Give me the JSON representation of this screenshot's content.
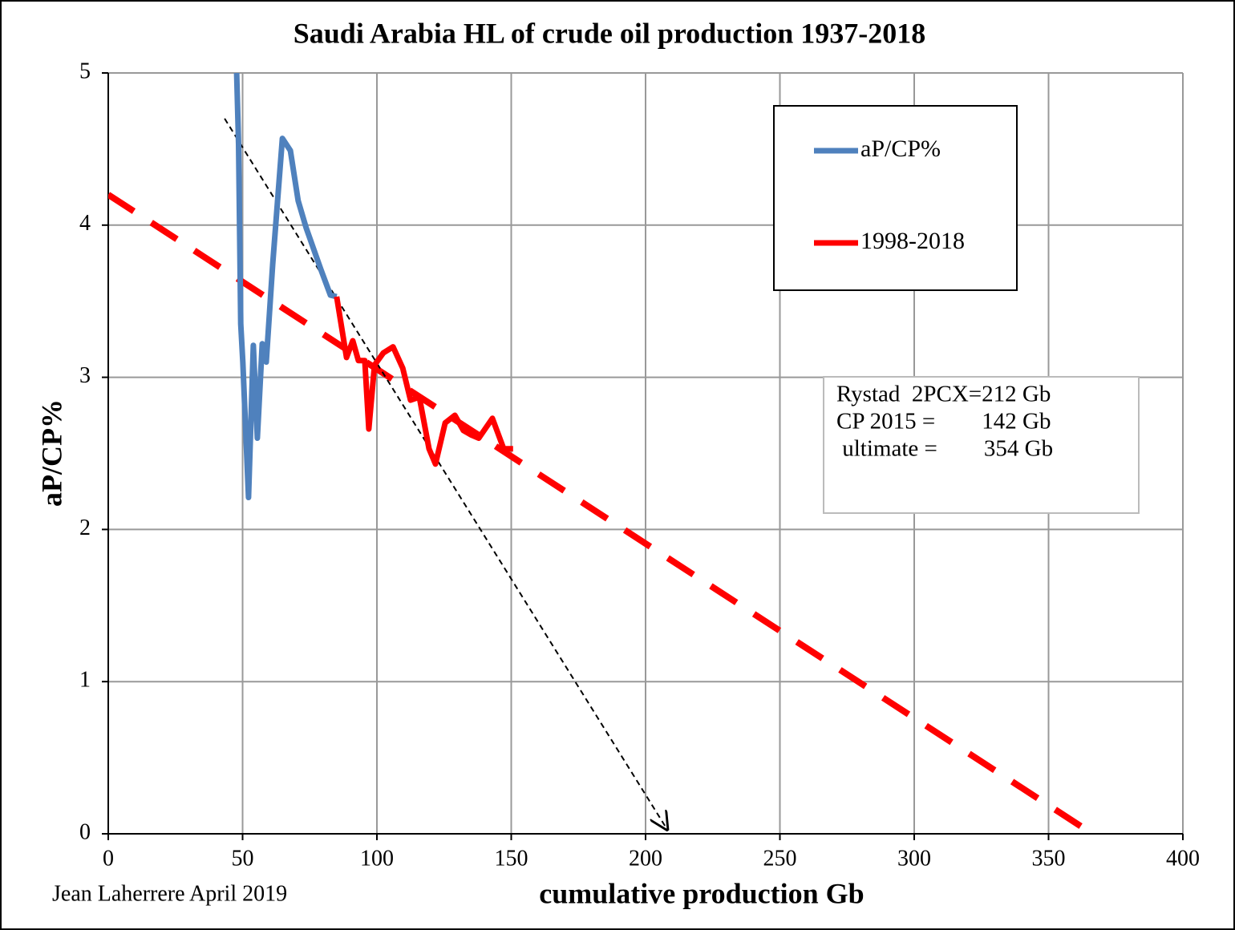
{
  "chart_data": {
    "type": "line",
    "title": "Saudi Arabia HL of crude oil production 1937-2018",
    "x_label": "cumulative production Gb",
    "y_label": "aP/CP%",
    "xlim": [
      0,
      400
    ],
    "xticks": [
      0,
      50,
      100,
      150,
      200,
      250,
      300,
      350,
      400
    ],
    "ylim": [
      0,
      5
    ],
    "yticks": [
      0,
      1,
      2,
      3,
      4,
      5
    ],
    "grid": true,
    "legend": "upper right",
    "series": [
      {
        "name": "aP/CP%",
        "color": "#4f81bd",
        "x": [
          47.8,
          48.5,
          49.3,
          50.1,
          52.2,
          54.0,
          55.5,
          57.3,
          58.8,
          61.2,
          64.8,
          67.8,
          70.7,
          73.7,
          79.1,
          82.7,
          85.0
        ],
        "values": [
          5.0,
          4.53,
          3.35,
          3.1,
          2.21,
          3.21,
          2.6,
          3.22,
          3.1,
          3.74,
          4.57,
          4.49,
          4.16,
          3.98,
          3.71,
          3.54,
          3.53
        ]
      },
      {
        "name": "1998-2018",
        "color": "#ff0000",
        "x": [
          85.0,
          88.7,
          91.0,
          93.1,
          95.5,
          97.0,
          99.1,
          102.4,
          106.0,
          109.6,
          112.5,
          115.8,
          119.4,
          121.8,
          125.4,
          129.0,
          132.2,
          135.2,
          137.9,
          143.0,
          147.2,
          150.7
        ],
        "values": [
          3.53,
          3.13,
          3.24,
          3.11,
          3.11,
          2.66,
          3.08,
          3.16,
          3.2,
          3.06,
          2.85,
          2.87,
          2.53,
          2.43,
          2.7,
          2.75,
          2.65,
          2.62,
          2.6,
          2.73,
          2.53,
          2.53
        ]
      }
    ],
    "trend_lines": [
      {
        "x": [
          0,
          362
        ],
        "values": [
          4.2,
          0.05
        ],
        "color": "#ff0000",
        "dashed": true
      },
      {
        "x": [
          43.3,
          208
        ],
        "values": [
          4.7,
          0.03
        ],
        "color": "#000000",
        "dashed": true,
        "arrow": true
      }
    ],
    "annotations": [
      "Rystad  2PCX=212 Gb",
      "CP 2015 =        142 Gb",
      " ultimate =        354 Gb"
    ],
    "credit": "Jean Laherrere April 2019"
  }
}
